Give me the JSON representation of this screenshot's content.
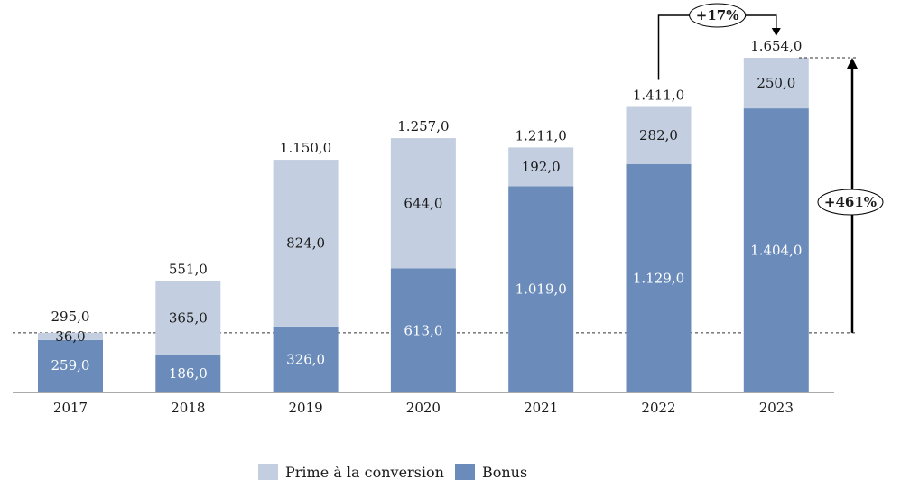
{
  "chart_data": {
    "type": "bar",
    "stacked": true,
    "categories": [
      "2017",
      "2018",
      "2019",
      "2020",
      "2021",
      "2022",
      "2023"
    ],
    "series": [
      {
        "name": "Bonus",
        "color": "#6b8cba",
        "values": [
          259.0,
          186.0,
          326.0,
          613.0,
          1019.0,
          1129.0,
          1404.0
        ],
        "labels": [
          "259,0",
          "186,0",
          "326,0",
          "613,0",
          "1.019,0",
          "1.129,0",
          "1.404,0"
        ]
      },
      {
        "name": "Prime à la conversion",
        "color": "#c3cfe1",
        "values": [
          36.0,
          365.0,
          824.0,
          644.0,
          192.0,
          282.0,
          250.0
        ],
        "labels": [
          "36,0",
          "365,0",
          "824,0",
          "644,0",
          "192,0",
          "282,0",
          "250,0"
        ]
      }
    ],
    "totals": [
      295.0,
      551.0,
      1150.0,
      1257.0,
      1211.0,
      1411.0,
      1654.0
    ],
    "total_labels": [
      "295,0",
      "551,0",
      "1.150,0",
      "1.257,0",
      "1.211,0",
      "1.411,0",
      "1.654,0"
    ],
    "annotations": [
      {
        "label": "+17%",
        "from": "2022",
        "to": "2023"
      },
      {
        "label": "+461%",
        "from": "2017",
        "to": "2023"
      }
    ],
    "ylim": [
      0,
      1700
    ],
    "grid": false,
    "legend_position": "bottom"
  }
}
